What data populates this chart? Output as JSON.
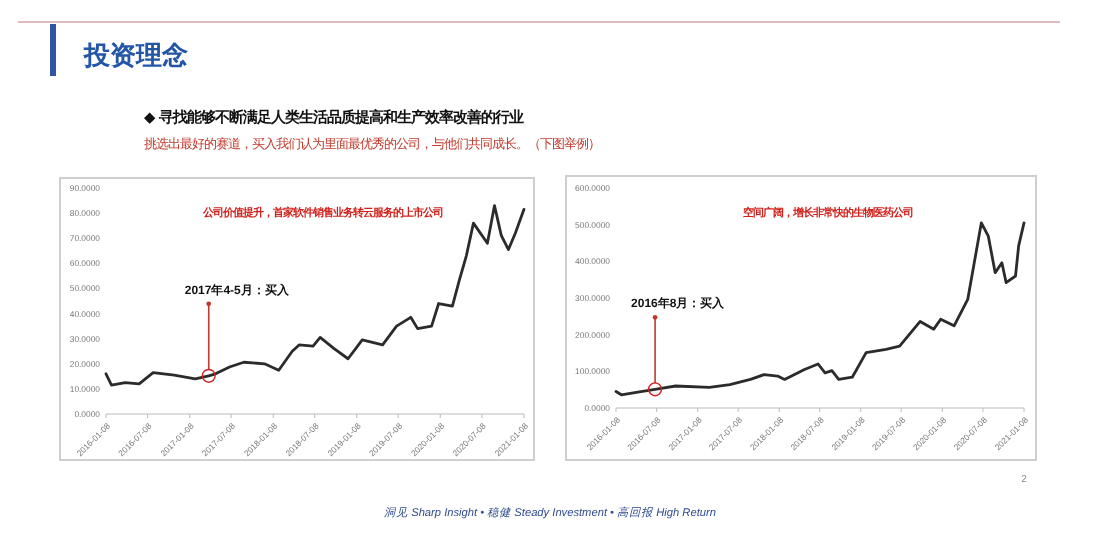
{
  "chart_data": [
    {
      "type": "other",
      "title": "投资理念",
      "subtitle": "◆ 寻找能够不断满足人类生活品质提高和生产效率改善的行业",
      "annotations": [
        "挑选出最好的赛道，买入我们认为里面最优秀的公司，与他们共同成长。（下图举例）",
        "洞见 Sharp Insight • 稳健 Steady Investment • 高回报 High Return",
        "2"
      ]
    },
    {
      "type": "line",
      "color": "#2b2b2b",
      "x": [
        "2016-01-08",
        "2016-02",
        "2016-04",
        "2016-06",
        "2016-08",
        "2016-11",
        "2017-02",
        "2017-04",
        "2017-05",
        "2017-07",
        "2017-09",
        "2017-12",
        "2018-02",
        "2018-04",
        "2018-05",
        "2018-07",
        "2018-08",
        "2018-10",
        "2018-12",
        "2019-02",
        "2019-05",
        "2019-07",
        "2019-09",
        "2019-10",
        "2019-12",
        "2020-01",
        "2020-03",
        "2020-04",
        "2020-05",
        "2020-06",
        "2020-08",
        "2020-09",
        "2020-10",
        "2020-11",
        "2020-12",
        "2021-01-08"
      ],
      "values": [
        16,
        11.5,
        12.5,
        12,
        16.5,
        15.5,
        14,
        15.2,
        16,
        18.7,
        20.6,
        20,
        17.4,
        25,
        27.5,
        27,
        30.5,
        26,
        22,
        29.5,
        27.5,
        35,
        38.5,
        34,
        35,
        44,
        43,
        53.5,
        63,
        76,
        68,
        83,
        71,
        65.5,
        72,
        81.5
      ],
      "xlim": [
        "2016-01-08",
        "2021-01-08"
      ],
      "xticks": [
        "2016-01-08",
        "2016-07-08",
        "2017-01-08",
        "2017-07-08",
        "2018-01-08",
        "2018-07-08",
        "2019-01-08",
        "2019-07-08",
        "2020-01-08",
        "2020-07-08",
        "2021-01-08"
      ],
      "ylim": [
        0,
        90
      ],
      "yticks": [
        {
          "value": 0,
          "label": "0.0000"
        },
        {
          "value": 10,
          "label": "10.0000"
        },
        {
          "value": 20,
          "label": "20.0000"
        },
        {
          "value": 30,
          "label": "30.0000"
        },
        {
          "value": 40,
          "label": "40.0000"
        },
        {
          "value": 50,
          "label": "50.0000"
        },
        {
          "value": 60,
          "label": "60.0000"
        },
        {
          "value": 70,
          "label": "70.0000"
        },
        {
          "value": 80,
          "label": "80.0000"
        },
        {
          "value": 90,
          "label": "90.0000"
        }
      ],
      "annotations": [
        "公司价值提升，首家软件销售业务转云服务的上市公司",
        {
          "text": "2017年4-5月：买入",
          "x": "2017-04",
          "y": 15.2
        }
      ]
    },
    {
      "type": "line",
      "color": "#2b2b2b",
      "x": [
        "2016-01-08",
        "2016-02",
        "2016-04",
        "2016-07",
        "2016-10",
        "2017-03",
        "2017-06",
        "2017-09",
        "2017-11",
        "2018-01",
        "2018-02",
        "2018-05",
        "2018-07",
        "2018-08",
        "2018-09",
        "2018-10",
        "2018-12",
        "2019-02",
        "2019-05",
        "2019-07",
        "2019-10",
        "2019-12",
        "2020-01",
        "2020-03",
        "2020-05",
        "2020-07",
        "2020-08",
        "2020-09",
        "2020-10-01",
        "2020-10-20",
        "2020-12-01",
        "2020-12-15",
        "2021-01-08"
      ],
      "values": [
        45,
        36,
        42,
        51,
        60,
        56,
        64,
        78,
        91,
        87,
        78,
        105,
        120,
        96,
        102,
        78,
        84,
        151,
        160,
        169,
        236,
        215,
        242,
        224,
        296,
        505,
        469,
        369,
        396,
        342,
        360,
        442,
        505
      ],
      "xlim": [
        "2016-01-08",
        "2021-01-08"
      ],
      "xticks": [
        "2016-01-08",
        "2016-07-08",
        "2017-01-08",
        "2017-07-08",
        "2018-01-08",
        "2018-07-08",
        "2019-01-08",
        "2019-07-08",
        "2020-01-08",
        "2020-07-08",
        "2021-01-08"
      ],
      "ylim": [
        0,
        600
      ],
      "yticks": [
        {
          "value": 0,
          "label": "0.0000"
        },
        {
          "value": 100,
          "label": "100.0000"
        },
        {
          "value": 200,
          "label": "200.0000"
        },
        {
          "value": 300,
          "label": "300.0000"
        },
        {
          "value": 400,
          "label": "400.0000"
        },
        {
          "value": 500,
          "label": "500.0000"
        },
        {
          "value": 600,
          "label": "600.0000"
        }
      ],
      "annotations": [
        "空间广阔，增长非常快的生物医药公司",
        {
          "text": "2016年8月：买入",
          "x": "2016-07",
          "y": 51
        }
      ]
    }
  ]
}
